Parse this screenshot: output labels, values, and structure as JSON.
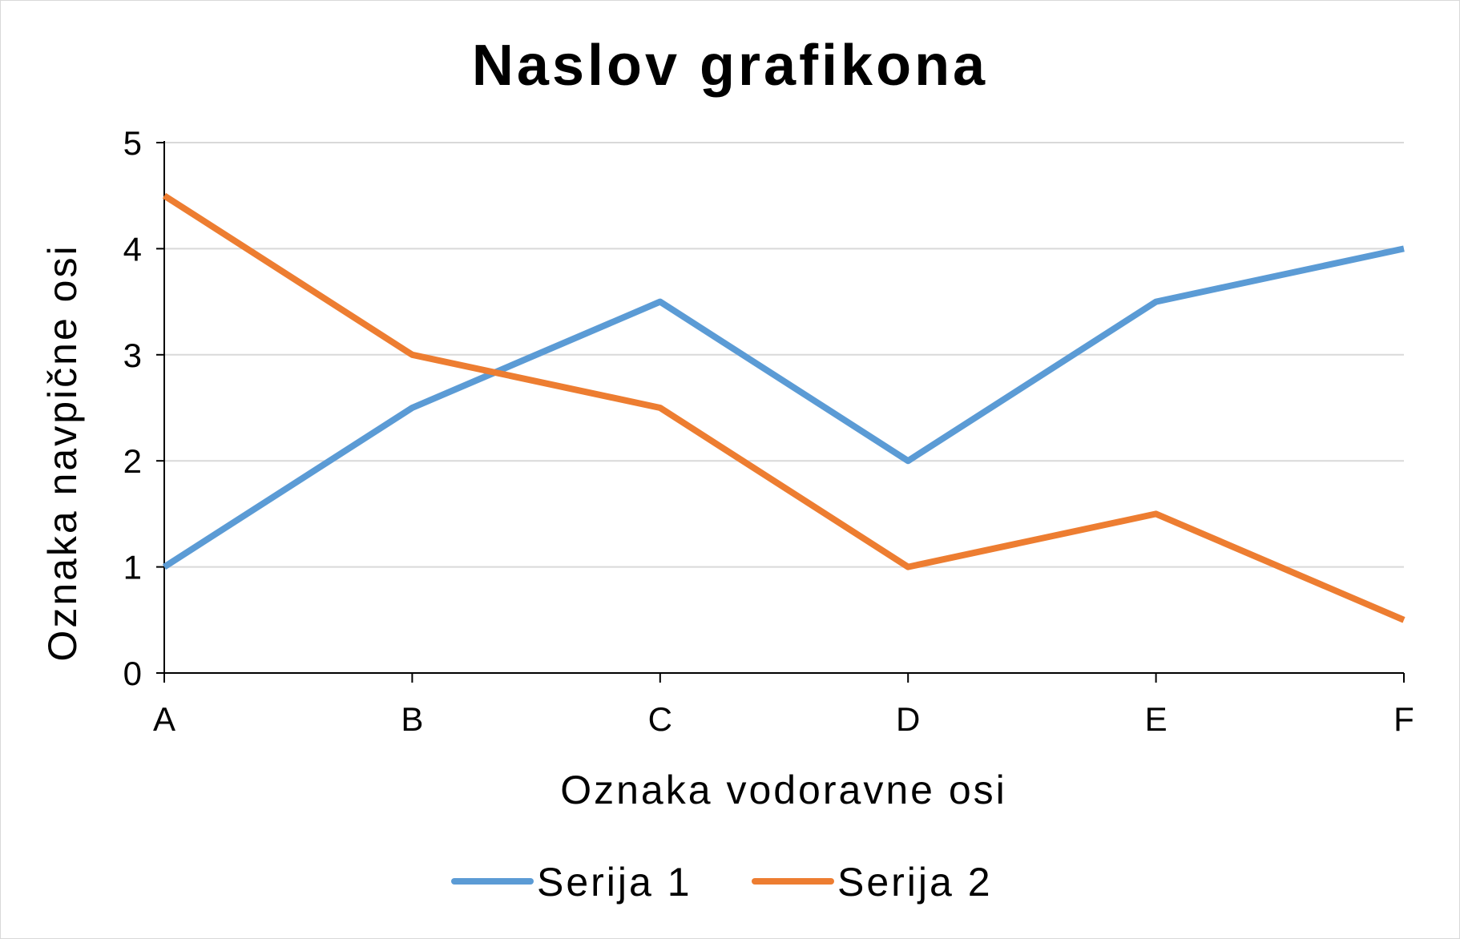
{
  "chart_data": {
    "type": "line",
    "title": "Naslov grafikona",
    "xlabel": "Oznaka vodoravne osi",
    "ylabel": "Oznaka navpične osi",
    "categories": [
      "A",
      "B",
      "C",
      "D",
      "E",
      "F"
    ],
    "y_ticks": [
      "0",
      "1",
      "2",
      "3",
      "4",
      "5"
    ],
    "ylim": [
      0,
      5
    ],
    "grid": true,
    "legend_position": "bottom",
    "series": [
      {
        "name": "Serija 1",
        "color": "#5b9bd5",
        "values": [
          1,
          2.5,
          3.5,
          2,
          3.5,
          4
        ]
      },
      {
        "name": "Serija 2",
        "color": "#ed7d31",
        "values": [
          4.5,
          3,
          2.5,
          1,
          1.5,
          0.5
        ]
      }
    ]
  }
}
